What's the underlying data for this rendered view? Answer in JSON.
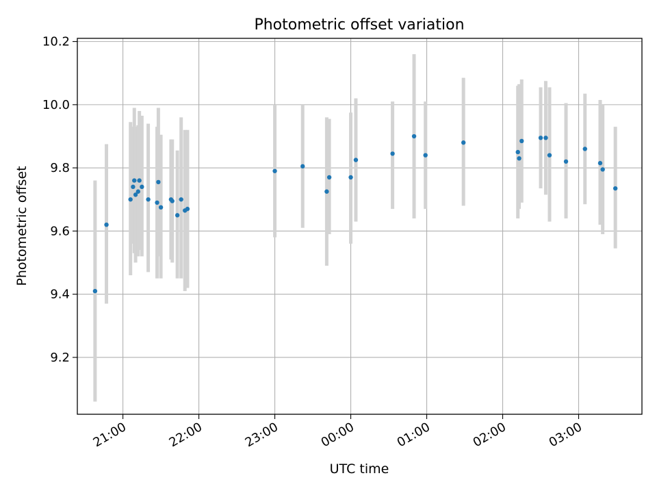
{
  "chart_data": {
    "type": "scatter",
    "title": "Photometric offset variation",
    "xlabel": "UTC time",
    "ylabel": "Photometric offset",
    "x_axis_kind": "time (UTC), crossing midnight",
    "xlim": [
      "20:24",
      "03:50"
    ],
    "ylim": [
      9.02,
      10.21
    ],
    "grid": true,
    "marker_color": "#1f77b4",
    "errorbar_color": "#d3d3d3",
    "x_ticks": [
      {
        "t": "21:00",
        "label": "21:00"
      },
      {
        "t": "22:00",
        "label": "22:00"
      },
      {
        "t": "23:00",
        "label": "23:00"
      },
      {
        "t": "00:00",
        "label": "00:00"
      },
      {
        "t": "01:00",
        "label": "01:00"
      },
      {
        "t": "02:00",
        "label": "02:00"
      },
      {
        "t": "03:00",
        "label": "03:00"
      }
    ],
    "y_ticks": [
      {
        "v": 9.2,
        "label": "9.2"
      },
      {
        "v": 9.4,
        "label": "9.4"
      },
      {
        "v": 9.6,
        "label": "9.6"
      },
      {
        "v": 9.8,
        "label": "9.8"
      },
      {
        "v": 10.0,
        "label": "10.0"
      },
      {
        "v": 10.2,
        "label": "10.2"
      }
    ],
    "points": [
      {
        "time": "20:38",
        "y": 9.41,
        "err_low": 9.06,
        "err_high": 9.76
      },
      {
        "time": "20:47",
        "y": 9.62,
        "err_low": 9.37,
        "err_high": 9.875
      },
      {
        "time": "21:06",
        "y": 9.7,
        "err_low": 9.46,
        "err_high": 9.945
      },
      {
        "time": "21:08",
        "y": 9.74,
        "err_low": 9.56,
        "err_high": 9.93
      },
      {
        "time": "21:09",
        "y": 9.76,
        "err_low": 9.53,
        "err_high": 9.99
      },
      {
        "time": "21:10",
        "y": 9.715,
        "err_low": 9.5,
        "err_high": 9.93
      },
      {
        "time": "21:12",
        "y": 9.725,
        "err_low": 9.52,
        "err_high": 9.935
      },
      {
        "time": "21:13",
        "y": 9.76,
        "err_low": 9.54,
        "err_high": 9.98
      },
      {
        "time": "21:15",
        "y": 9.74,
        "err_low": 9.52,
        "err_high": 9.965
      },
      {
        "time": "21:20",
        "y": 9.7,
        "err_low": 9.47,
        "err_high": 9.94
      },
      {
        "time": "21:27",
        "y": 9.69,
        "err_low": 9.45,
        "err_high": 9.93
      },
      {
        "time": "21:28",
        "y": 9.755,
        "err_low": 9.52,
        "err_high": 9.99
      },
      {
        "time": "21:30",
        "y": 9.675,
        "err_low": 9.45,
        "err_high": 9.905
      },
      {
        "time": "21:38",
        "y": 9.7,
        "err_low": 9.51,
        "err_high": 9.89
      },
      {
        "time": "21:39",
        "y": 9.695,
        "err_low": 9.5,
        "err_high": 9.89
      },
      {
        "time": "21:43",
        "y": 9.65,
        "err_low": 9.45,
        "err_high": 9.855
      },
      {
        "time": "21:46",
        "y": 9.7,
        "err_low": 9.45,
        "err_high": 9.96
      },
      {
        "time": "21:49",
        "y": 9.665,
        "err_low": 9.41,
        "err_high": 9.92
      },
      {
        "time": "21:51",
        "y": 9.67,
        "err_low": 9.42,
        "err_high": 9.92
      },
      {
        "time": "23:00",
        "y": 9.79,
        "err_low": 9.58,
        "err_high": 10.0
      },
      {
        "time": "23:22",
        "y": 9.805,
        "err_low": 9.61,
        "err_high": 10.0
      },
      {
        "time": "23:41",
        "y": 9.725,
        "err_low": 9.49,
        "err_high": 9.96
      },
      {
        "time": "23:43",
        "y": 9.77,
        "err_low": 9.59,
        "err_high": 9.955
      },
      {
        "time": "00:00",
        "y": 9.77,
        "err_low": 9.56,
        "err_high": 9.975
      },
      {
        "time": "00:04",
        "y": 9.825,
        "err_low": 9.63,
        "err_high": 10.02
      },
      {
        "time": "00:33",
        "y": 9.845,
        "err_low": 9.67,
        "err_high": 10.01
      },
      {
        "time": "00:50",
        "y": 9.9,
        "err_low": 9.64,
        "err_high": 10.16
      },
      {
        "time": "00:59",
        "y": 9.84,
        "err_low": 9.67,
        "err_high": 10.01
      },
      {
        "time": "01:29",
        "y": 9.88,
        "err_low": 9.68,
        "err_high": 10.085
      },
      {
        "time": "02:12",
        "y": 9.85,
        "err_low": 9.64,
        "err_high": 10.06
      },
      {
        "time": "02:13",
        "y": 9.83,
        "err_low": 9.67,
        "err_high": 10.065
      },
      {
        "time": "02:15",
        "y": 9.885,
        "err_low": 9.69,
        "err_high": 10.08
      },
      {
        "time": "02:30",
        "y": 9.895,
        "err_low": 9.735,
        "err_high": 10.055
      },
      {
        "time": "02:34",
        "y": 9.895,
        "err_low": 9.715,
        "err_high": 10.075
      },
      {
        "time": "02:37",
        "y": 9.84,
        "err_low": 9.63,
        "err_high": 10.055
      },
      {
        "time": "02:50",
        "y": 9.82,
        "err_low": 9.64,
        "err_high": 10.005
      },
      {
        "time": "03:05",
        "y": 9.86,
        "err_low": 9.685,
        "err_high": 10.035
      },
      {
        "time": "03:17",
        "y": 9.815,
        "err_low": 9.62,
        "err_high": 10.015
      },
      {
        "time": "03:19",
        "y": 9.795,
        "err_low": 9.59,
        "err_high": 10.0
      },
      {
        "time": "03:29",
        "y": 9.735,
        "err_low": 9.545,
        "err_high": 9.93
      }
    ]
  }
}
